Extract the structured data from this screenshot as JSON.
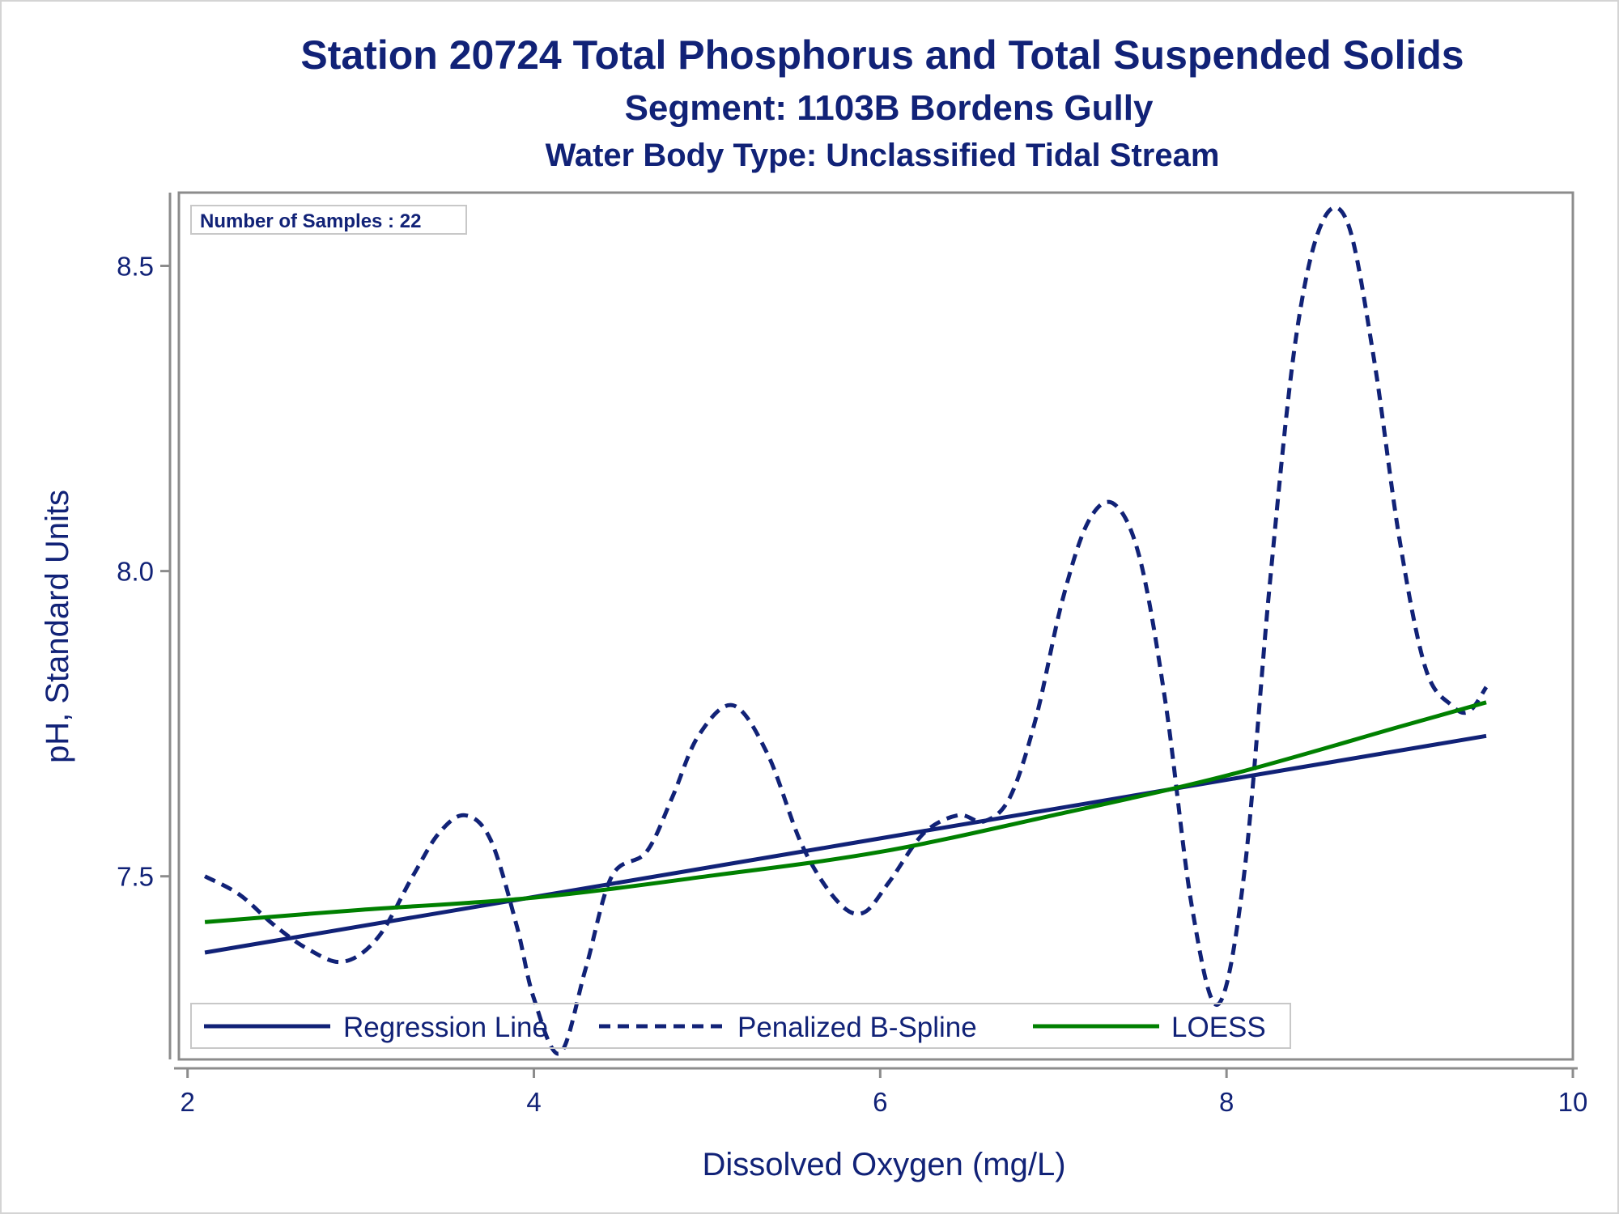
{
  "chart_data": {
    "type": "line",
    "title": "Station 20724  Total Phosphorus and Total Suspended Solids",
    "subtitle": "Segment: 1103B  Bordens Gully",
    "subtitle2": "Water Body Type: Unclassified Tidal Stream",
    "xlabel": "Dissolved Oxygen (mg/L)",
    "ylabel": "pH, Standard Units",
    "xlim": [
      1.95,
      10.0
    ],
    "ylim": [
      7.2,
      8.62
    ],
    "x_ticks": [
      2,
      4,
      6,
      8,
      10
    ],
    "x_tick_labels": [
      "2",
      "4",
      "6",
      "8",
      "10"
    ],
    "y_ticks": [
      7.5,
      8.0,
      8.5
    ],
    "y_tick_labels": [
      "7.5",
      "8.0",
      "8.5"
    ],
    "grid": false,
    "legend_placement": "bottom-left inside",
    "inset_label": "Number of Samples : 22",
    "series": [
      {
        "name": "Regression Line",
        "style": "solid",
        "color": "#112277",
        "x": [
          2.1,
          9.5
        ],
        "y": [
          7.375,
          7.73
        ]
      },
      {
        "name": "Penalized B-Spline",
        "style": "dashed",
        "color": "#112277",
        "x": [
          2.1,
          2.3,
          2.5,
          2.7,
          2.9,
          3.1,
          3.3,
          3.45,
          3.6,
          3.75,
          3.9,
          4.0,
          4.15,
          4.3,
          4.45,
          4.65,
          4.8,
          4.95,
          5.15,
          5.35,
          5.55,
          5.75,
          5.9,
          6.05,
          6.25,
          6.45,
          6.6,
          6.75,
          6.9,
          7.05,
          7.2,
          7.35,
          7.5,
          7.65,
          7.8,
          7.95,
          8.1,
          8.25,
          8.4,
          8.55,
          8.7,
          8.85,
          9.0,
          9.15,
          9.3,
          9.4,
          9.5
        ],
        "y": [
          7.5,
          7.47,
          7.42,
          7.38,
          7.36,
          7.4,
          7.5,
          7.57,
          7.6,
          7.56,
          7.42,
          7.3,
          7.21,
          7.35,
          7.5,
          7.54,
          7.63,
          7.73,
          7.78,
          7.7,
          7.55,
          7.46,
          7.44,
          7.49,
          7.57,
          7.6,
          7.59,
          7.63,
          7.76,
          7.95,
          8.08,
          8.11,
          8.02,
          7.78,
          7.45,
          7.29,
          7.5,
          7.98,
          8.38,
          8.57,
          8.57,
          8.35,
          8.05,
          7.84,
          7.78,
          7.77,
          7.81
        ]
      },
      {
        "name": "LOESS",
        "style": "solid",
        "color": "#008000",
        "x": [
          2.1,
          3.0,
          4.0,
          5.0,
          6.0,
          7.0,
          8.0,
          9.0,
          9.5
        ],
        "y": [
          7.425,
          7.445,
          7.465,
          7.5,
          7.54,
          7.6,
          7.665,
          7.745,
          7.785
        ]
      }
    ]
  }
}
